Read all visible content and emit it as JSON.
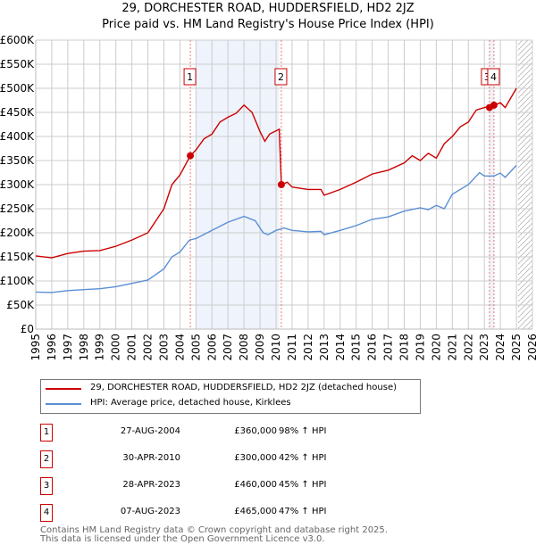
{
  "chart_data": {
    "type": "line",
    "title": "29, DORCHESTER ROAD, HUDDERSFIELD, HD2 2JZ",
    "subtitle": "Price paid vs. HM Land Registry's House Price Index (HPI)",
    "xlim": [
      1995,
      2026
    ],
    "ylim": [
      0,
      600000
    ],
    "x_ticks": [
      "1995",
      "1996",
      "1997",
      "1998",
      "1999",
      "2000",
      "2001",
      "2002",
      "2003",
      "2004",
      "2005",
      "2006",
      "2007",
      "2008",
      "2009",
      "2010",
      "2011",
      "2012",
      "2013",
      "2014",
      "2015",
      "2016",
      "2017",
      "2018",
      "2019",
      "2020",
      "2021",
      "2022",
      "2023",
      "2024",
      "2025",
      "2026"
    ],
    "y_ticks": [
      {
        "v": 0,
        "l": "£0"
      },
      {
        "v": 50000,
        "l": "£50K"
      },
      {
        "v": 100000,
        "l": "£100K"
      },
      {
        "v": 150000,
        "l": "£150K"
      },
      {
        "v": 200000,
        "l": "£200K"
      },
      {
        "v": 250000,
        "l": "£250K"
      },
      {
        "v": 300000,
        "l": "£300K"
      },
      {
        "v": 350000,
        "l": "£350K"
      },
      {
        "v": 400000,
        "l": "£400K"
      },
      {
        "v": 450000,
        "l": "£450K"
      },
      {
        "v": 500000,
        "l": "£500K"
      },
      {
        "v": 550000,
        "l": "£550K"
      },
      {
        "v": 600000,
        "l": "£600K"
      }
    ],
    "grid": true,
    "series": [
      {
        "name": "29, DORCHESTER ROAD, HUDDERSFIELD, HD2 2JZ (detached house)",
        "color": "#cc0000",
        "x": [
          1995,
          1996,
          1997,
          1998,
          1999,
          2000,
          2001,
          2002,
          2003,
          2003.5,
          2004,
          2004.65,
          2005,
          2005.5,
          2006,
          2006.5,
          2007,
          2007.5,
          2008,
          2008.5,
          2009,
          2009.3,
          2009.6,
          2010.2,
          2010.33,
          2010.7,
          2011,
          2012,
          2012.8,
          2013,
          2014,
          2015,
          2016,
          2017,
          2018,
          2018.5,
          2019,
          2019.5,
          2020,
          2020.5,
          2021,
          2021.5,
          2022,
          2022.5,
          2023,
          2023.6,
          2024,
          2024.3,
          2025
        ],
        "y": [
          152000,
          148000,
          157000,
          162000,
          163000,
          172000,
          185000,
          200000,
          250000,
          300000,
          320000,
          360000,
          372000,
          395000,
          405000,
          430000,
          440000,
          448000,
          465000,
          450000,
          410000,
          390000,
          405000,
          415000,
          300000,
          305000,
          295000,
          290000,
          290000,
          278000,
          290000,
          305000,
          322000,
          330000,
          345000,
          360000,
          350000,
          365000,
          355000,
          385000,
          400000,
          420000,
          430000,
          455000,
          460000,
          465000,
          470000,
          460000,
          500000
        ]
      },
      {
        "name": "HPI: Average price, detached house, Kirklees",
        "color": "#5b8fd4",
        "x": [
          1995,
          1996,
          1997,
          1998,
          1999,
          2000,
          2001,
          2002,
          2003,
          2003.5,
          2004,
          2004.6,
          2005,
          2006,
          2007,
          2008,
          2008.7,
          2009.2,
          2009.5,
          2010,
          2010.5,
          2011,
          2012,
          2012.8,
          2013,
          2014,
          2015,
          2016,
          2017,
          2018,
          2019,
          2019.5,
          2020,
          2020.5,
          2021,
          2022,
          2022.7,
          2023,
          2023.6,
          2024,
          2024.3,
          2025
        ],
        "y": [
          77000,
          76000,
          80000,
          82000,
          84000,
          88000,
          95000,
          102000,
          125000,
          150000,
          160000,
          185000,
          188000,
          205000,
          222000,
          234000,
          225000,
          200000,
          196000,
          205000,
          210000,
          205000,
          202000,
          203000,
          196000,
          205000,
          215000,
          228000,
          233000,
          245000,
          252000,
          248000,
          257000,
          250000,
          280000,
          300000,
          325000,
          318000,
          318000,
          324000,
          315000,
          340000
        ]
      }
    ],
    "sales": [
      {
        "n": "1",
        "x": 2004.65,
        "date": "27-AUG-2004",
        "price": "£360,000",
        "value": 360000,
        "hpi": "98% ↑ HPI"
      },
      {
        "n": "2",
        "x": 2010.33,
        "date": "30-APR-2010",
        "price": "£300,000",
        "value": 300000,
        "hpi": "42% ↑ HPI"
      },
      {
        "n": "3",
        "x": 2023.32,
        "date": "28-APR-2023",
        "price": "£460,000",
        "value": 460000,
        "hpi": "45% ↑ HPI"
      },
      {
        "n": "4",
        "x": 2023.6,
        "date": "07-AUG-2023",
        "price": "£465,000",
        "value": 465000,
        "hpi": "47% ↑ HPI"
      }
    ],
    "footer1": "Contains HM Land Registry data © Crown copyright and database right 2025.",
    "footer2": "This data is licensed under the Open Government Licence v3.0."
  }
}
